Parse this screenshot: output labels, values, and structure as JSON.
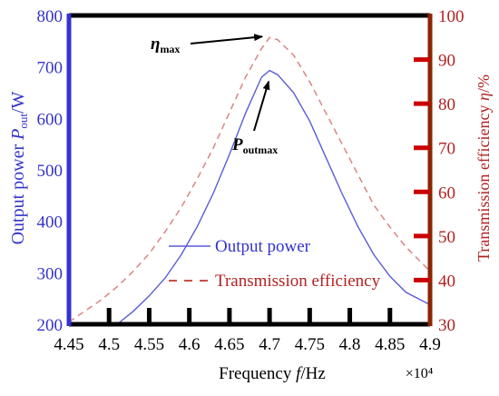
{
  "chart_data": {
    "type": "line",
    "x_label_main": "Frequency ",
    "x_label_var": "f",
    "x_label_unit": "/Hz",
    "x_scale_label": "×10⁴",
    "xlim": [
      4.45,
      4.9
    ],
    "x_ticks": [
      "4.45",
      "4.5",
      "4.55",
      "4.6",
      "4.65",
      "4.7",
      "4.75",
      "4.8",
      "4.85",
      "4.9"
    ],
    "y_left": {
      "label_main": "Output power ",
      "label_var": "P",
      "label_sub": "out",
      "label_unit": "/W",
      "ylim": [
        200,
        800
      ],
      "ticks": [
        "200",
        "300",
        "400",
        "500",
        "600",
        "700",
        "800"
      ],
      "color": "#3333cc"
    },
    "y_right": {
      "label_main": "Transmission efficiency ",
      "label_var": "η",
      "label_unit": "/%",
      "ylim": [
        30,
        100
      ],
      "ticks": [
        "30",
        "40",
        "50",
        "60",
        "70",
        "80",
        "90",
        "100"
      ],
      "color": "#b22222"
    },
    "series": [
      {
        "name": "Output power",
        "axis": "left",
        "style": "solid",
        "color": "#5b5bd6",
        "x": [
          4.51,
          4.53,
          4.55,
          4.57,
          4.59,
          4.61,
          4.63,
          4.65,
          4.67,
          4.69,
          4.7,
          4.71,
          4.73,
          4.75,
          4.77,
          4.79,
          4.81,
          4.83,
          4.85,
          4.87,
          4.9
        ],
        "y": [
          200,
          225,
          255,
          290,
          335,
          390,
          455,
          530,
          610,
          680,
          693,
          685,
          650,
          595,
          525,
          455,
          390,
          335,
          293,
          262,
          238
        ]
      },
      {
        "name": "Transmission efficiency",
        "axis": "right",
        "style": "dashed",
        "color": "#d98585",
        "x": [
          4.45,
          4.47,
          4.49,
          4.51,
          4.53,
          4.55,
          4.57,
          4.59,
          4.61,
          4.63,
          4.65,
          4.67,
          4.69,
          4.7,
          4.71,
          4.73,
          4.75,
          4.77,
          4.79,
          4.81,
          4.83,
          4.85,
          4.87,
          4.9
        ],
        "y": [
          30.5,
          33,
          35.5,
          38.5,
          42,
          46,
          51,
          56.5,
          63,
          70,
          78,
          86,
          92.5,
          95,
          94.5,
          91,
          85,
          78,
          71,
          64,
          57,
          52,
          47.5,
          42
        ]
      }
    ],
    "legend": {
      "placement": "bottom-center",
      "entries": [
        "Output power",
        "Transmission efficiency"
      ]
    },
    "annotations": [
      {
        "label_var": "η",
        "label_sub": "max",
        "target_x": 4.7,
        "target_y": 95,
        "axis": "right"
      },
      {
        "label_var": "P",
        "label_sub": "outmax",
        "target_x": 4.7,
        "target_y": 693,
        "axis": "left"
      }
    ]
  }
}
